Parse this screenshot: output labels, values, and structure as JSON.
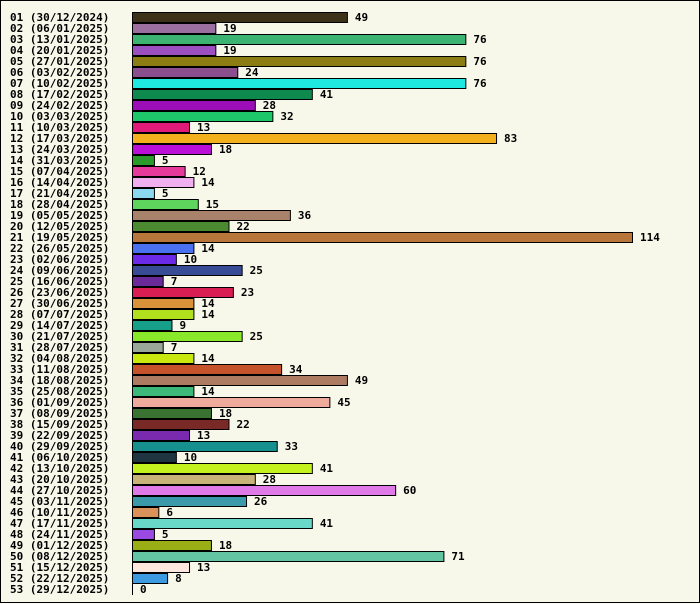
{
  "chart_data": {
    "type": "bar",
    "orientation": "horizontal",
    "title": "",
    "xlabel": "",
    "ylabel": "",
    "grid": false,
    "legend": "none",
    "xlim": [
      0,
      114
    ],
    "categories": [
      "01 (30/12/2024)",
      "02 (06/01/2025)",
      "03 (13/01/2025)",
      "04 (20/01/2025)",
      "05 (27/01/2025)",
      "06 (03/02/2025)",
      "07 (10/02/2025)",
      "08 (17/02/2025)",
      "09 (24/02/2025)",
      "10 (03/03/2025)",
      "11 (10/03/2025)",
      "12 (17/03/2025)",
      "13 (24/03/2025)",
      "14 (31/03/2025)",
      "15 (07/04/2025)",
      "16 (14/04/2025)",
      "17 (21/04/2025)",
      "18 (28/04/2025)",
      "19 (05/05/2025)",
      "20 (12/05/2025)",
      "21 (19/05/2025)",
      "22 (26/05/2025)",
      "23 (02/06/2025)",
      "24 (09/06/2025)",
      "25 (16/06/2025)",
      "26 (23/06/2025)",
      "27 (30/06/2025)",
      "28 (07/07/2025)",
      "29 (14/07/2025)",
      "30 (21/07/2025)",
      "31 (28/07/2025)",
      "32 (04/08/2025)",
      "33 (11/08/2025)",
      "34 (18/08/2025)",
      "35 (25/08/2025)",
      "36 (01/09/2025)",
      "37 (08/09/2025)",
      "38 (15/09/2025)",
      "39 (22/09/2025)",
      "40 (29/09/2025)",
      "41 (06/10/2025)",
      "42 (13/10/2025)",
      "43 (20/10/2025)",
      "44 (27/10/2025)",
      "45 (03/11/2025)",
      "46 (10/11/2025)",
      "47 (17/11/2025)",
      "48 (24/11/2025)",
      "49 (01/12/2025)",
      "50 (08/12/2025)",
      "51 (15/12/2025)",
      "52 (22/12/2025)",
      "53 (29/12/2025)"
    ],
    "values": [
      49,
      19,
      76,
      19,
      76,
      24,
      76,
      41,
      28,
      32,
      13,
      83,
      18,
      5,
      12,
      14,
      5,
      15,
      36,
      22,
      114,
      14,
      10,
      25,
      7,
      23,
      14,
      14,
      9,
      25,
      7,
      14,
      34,
      49,
      14,
      45,
      18,
      22,
      13,
      33,
      10,
      41,
      28,
      60,
      26,
      6,
      41,
      5,
      18,
      71,
      13,
      8,
      0
    ],
    "colors": [
      "#3d3119",
      "#9b6f9f",
      "#3cb371",
      "#9b4fc0",
      "#8b7d12",
      "#8a4f8c",
      "#1ee8e0",
      "#0f8a4e",
      "#9c0fb8",
      "#1ec86a",
      "#e01a78",
      "#f4b11e",
      "#b90fd6",
      "#2a9a2a",
      "#e63a9a",
      "#f0b0f0",
      "#8cd8ee",
      "#5ed65e",
      "#a8826a",
      "#4c8a32",
      "#b8763a",
      "#4a72f0",
      "#6a2ae8",
      "#384c96",
      "#6a2a9a",
      "#d81e52",
      "#d9923a",
      "#b0e01e",
      "#16a08a",
      "#8ae82a",
      "#9aa89a",
      "#c8e80e",
      "#c4522a",
      "#ad7a62",
      "#3cb87a",
      "#eeaa9a",
      "#3a7232",
      "#7a2a26",
      "#7a2aae",
      "#16908e",
      "#1e3440",
      "#c4f21e",
      "#c8b478",
      "#e07ae8",
      "#3a9aaa",
      "#d8925a",
      "#6ad8c8",
      "#9a4ae0",
      "#9aae16",
      "#62c4a2",
      "#fce6de",
      "#3e9ae0",
      "#888888"
    ]
  }
}
